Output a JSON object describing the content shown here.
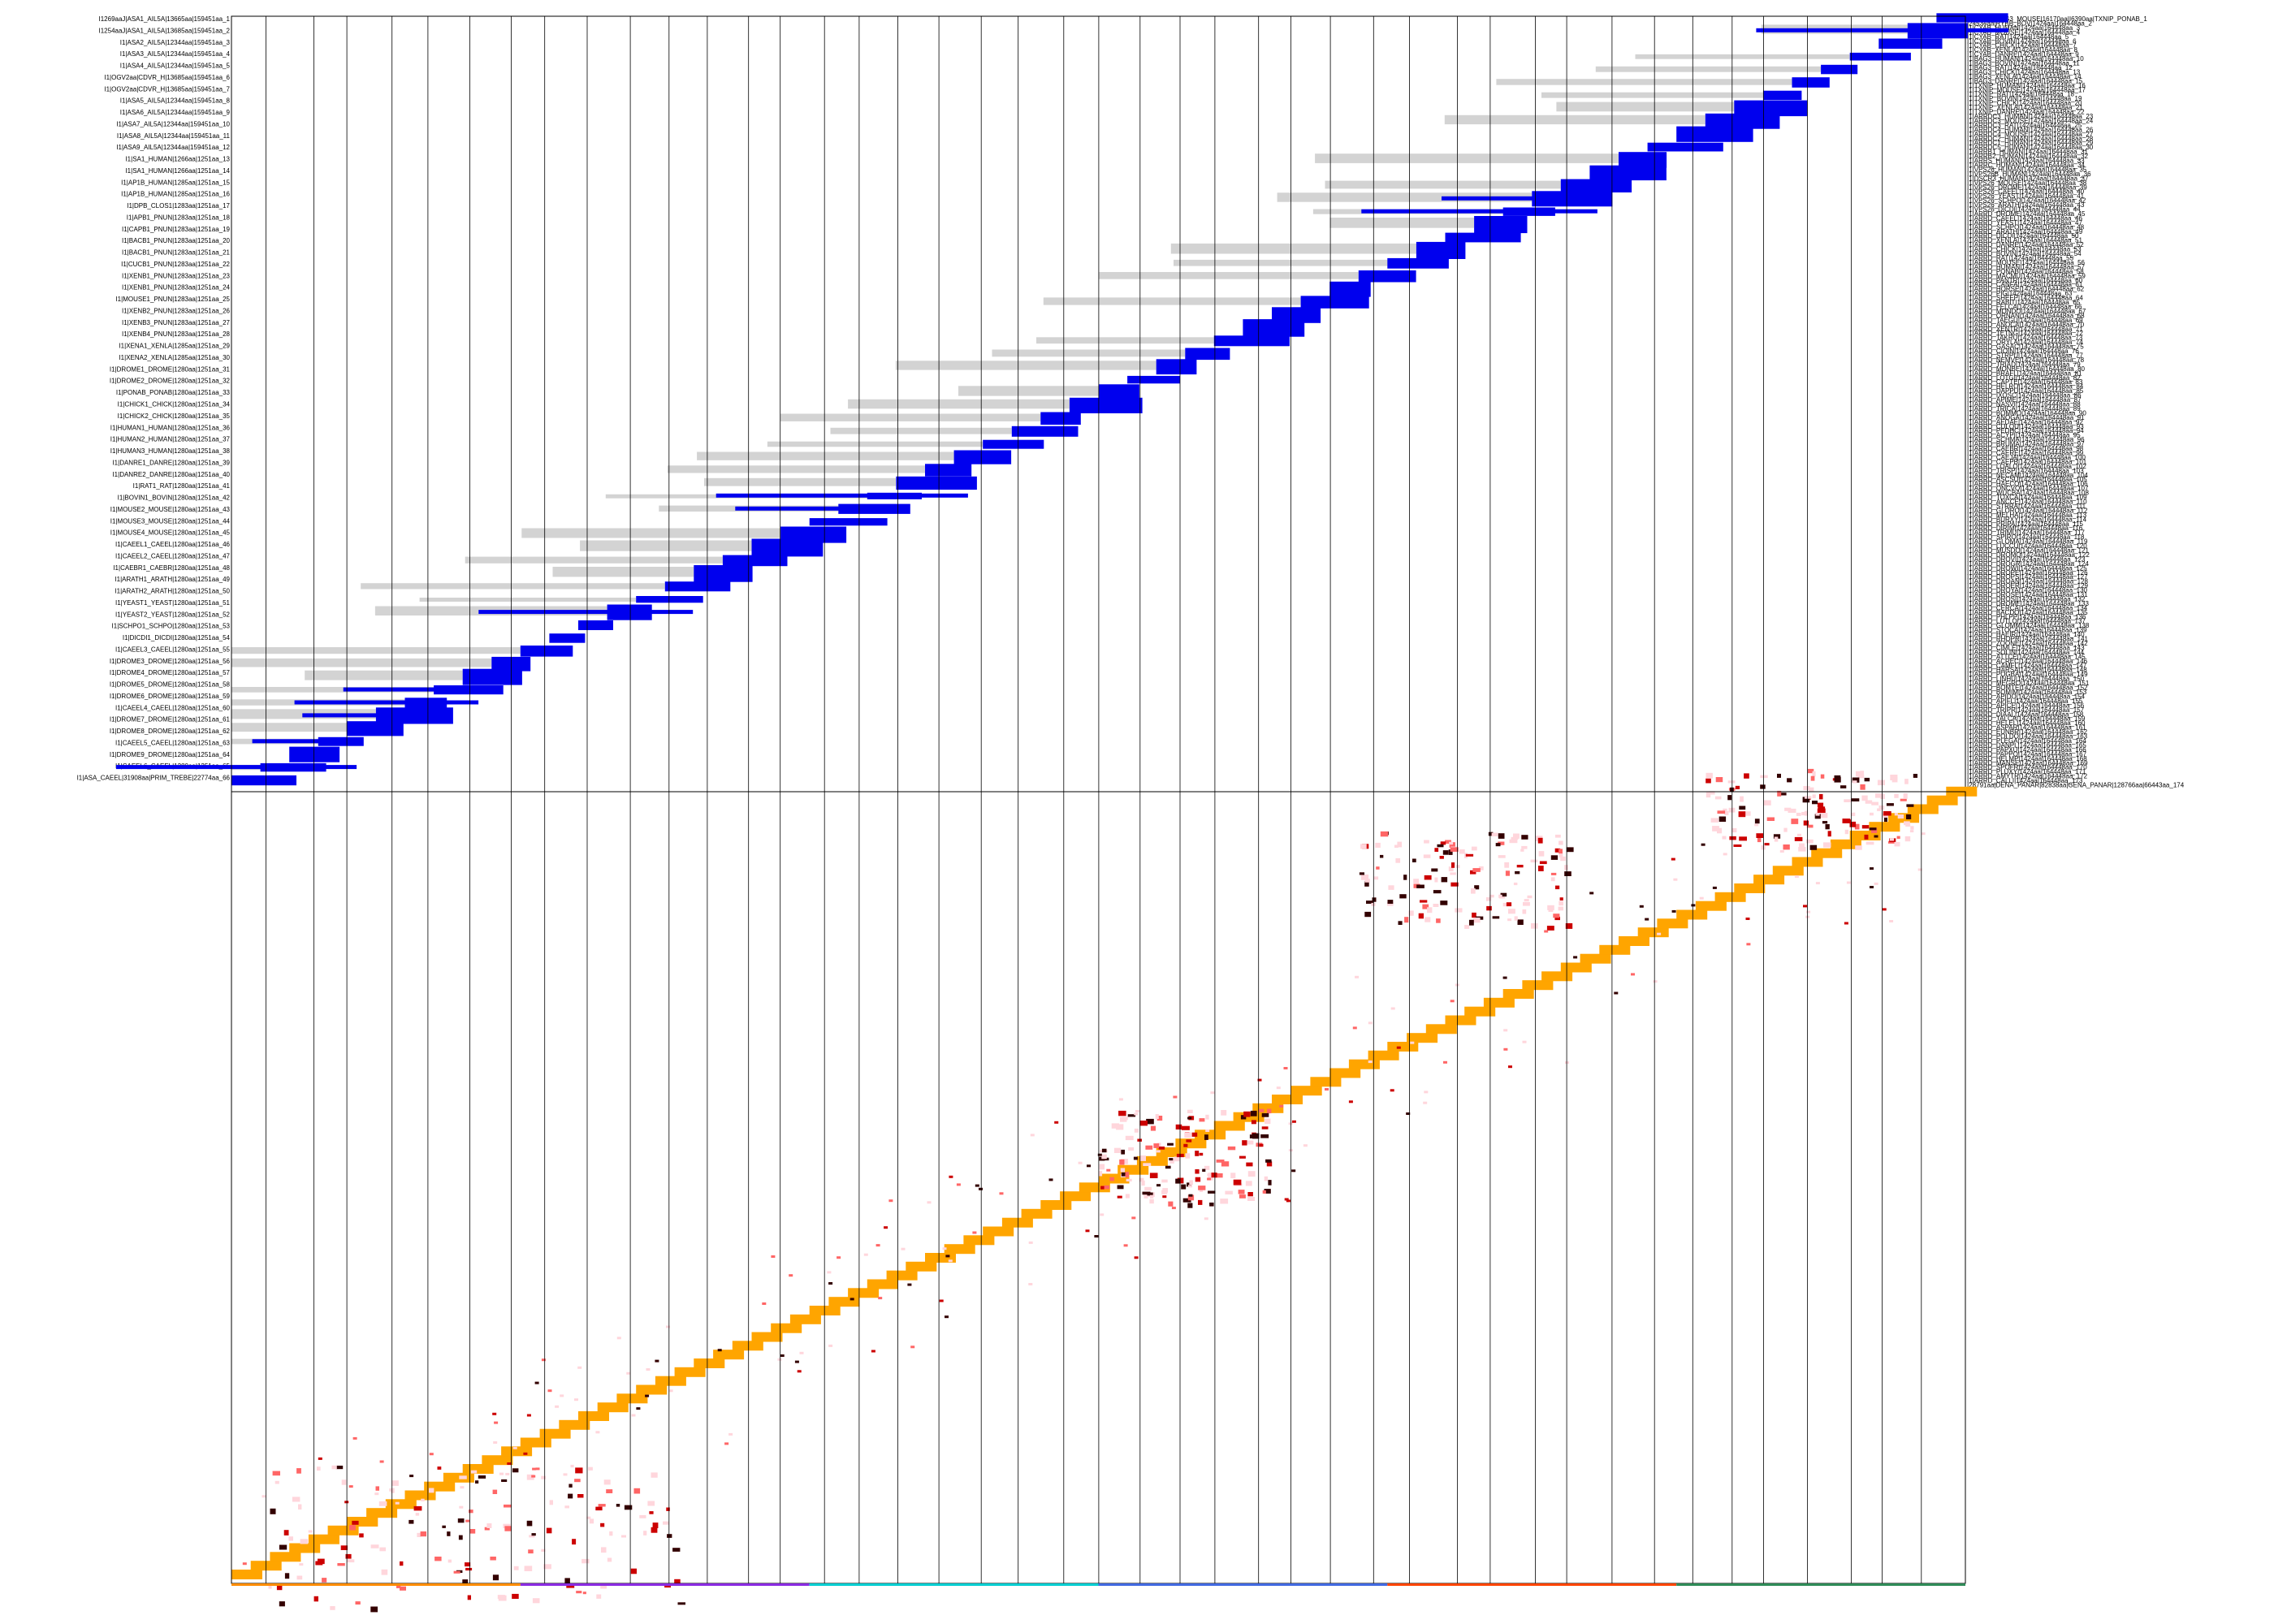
{
  "figure": {
    "description_free": true,
    "panel_top": "sequence-coverage",
    "panel_bottom": "contact-map"
  },
  "colors": {
    "background": "#ffffff",
    "coverage_cell": "#0000ee",
    "coverage_gap": "#d3d3d3",
    "grid_line": "#000000",
    "diagonal": "#ffa500",
    "contact_low": "#ffd6dc",
    "contact_mid": "#ff6666",
    "contact_high": "#cc0000",
    "contact_max": "#330000",
    "axis_strip": [
      "#ff8c00",
      "#8a2be2",
      "#00ced1",
      "#4169e1",
      "#ff4500",
      "#2e8b57"
    ]
  },
  "left_labels": [
    "I1269aaJ|ASA1_AIL5A|13665aa|159451aa_1",
    "I1254aaJ|ASA1_AIL5A|13685aa|159451aa_2",
    "I1|ASA2_AIL5A|12344aa|159451aa_3",
    "I1|ASA3_AIL5A|12344aa|159451aa_4",
    "I1|ASA4_AIL5A|12344aa|159451aa_5",
    "I1|OGV2aa|CDVR_H|13685aa|159451aa_6",
    "I1|OGV2aa|CDVR_H|13685aa|159451aa_7",
    "I1|ASA5_AIL5A|12344aa|159451aa_8",
    "I1|ASA6_AIL5A|12344aa|159451aa_9",
    "I1|ASA7_AIL5A|12344aa|159451aa_10",
    "I1|ASA8_AIL5A|12344aa|159451aa_11",
    "I1|ASA9_AIL5A|12344aa|159451aa_12",
    "I1|SA1_HUMAN|1266aa|1251aa_13",
    "I1|SA1_HUMAN|1266aa|1251aa_14",
    "I1|AP1B_HUMAN|1285aa|1251aa_15",
    "I1|AP1B_HUMAN|1285aa|1251aa_16",
    "I1|DPB_CLOS1|1283aa|1251aa_17",
    "I1|APB1_PNUN|1283aa|1251aa_18",
    "I1|CAPB1_PNUN|1283aa|1251aa_19",
    "I1|BACB1_PNUN|1283aa|1251aa_20",
    "I1|BACB1_PNUN|1283aa|1251aa_21",
    "I1|CUCB1_PNUN|1283aa|1251aa_22",
    "I1|XENB1_PNUN|1283aa|1251aa_23",
    "I1|XENB1_PNUN|1283aa|1251aa_24",
    "I1|MOUSE1_PNUN|1283aa|1251aa_25",
    "I1|XENB2_PNUN|1283aa|1251aa_26",
    "I1|XENB3_PNUN|1283aa|1251aa_27",
    "I1|XENB4_PNUN|1283aa|1251aa_28",
    "I1|XENA1_XENLA|1285aa|1251aa_29",
    "I1|XENA2_XENLA|1285aa|1251aa_30",
    "I1|DROME1_DROME|1280aa|1251aa_31",
    "I1|DROME2_DROME|1280aa|1251aa_32",
    "I1|PONAB_PONAB|1280aa|1251aa_33",
    "I1|CHICK1_CHICK|1280aa|1251aa_34",
    "I1|CHICK2_CHICK|1280aa|1251aa_35",
    "I1|HUMAN1_HUMAN|1280aa|1251aa_36",
    "I1|HUMAN2_HUMAN|1280aa|1251aa_37",
    "I1|HUMAN3_HUMAN|1280aa|1251aa_38",
    "I1|DANRE1_DANRE|1280aa|1251aa_39",
    "I1|DANRE2_DANRE|1280aa|1251aa_40",
    "I1|RAT1_RAT|1280aa|1251aa_41",
    "I1|BOVIN1_BOVIN|1280aa|1251aa_42",
    "I1|MOUSE2_MOUSE|1280aa|1251aa_43",
    "I1|MOUSE3_MOUSE|1280aa|1251aa_44",
    "I1|MOUSE4_MOUSE|1280aa|1251aa_45",
    "I1|CAEEL1_CAEEL|1280aa|1251aa_46",
    "I1|CAEEL2_CAEEL|1280aa|1251aa_47",
    "I1|CAEBR1_CAEBR|1280aa|1251aa_48",
    "I1|ARATH1_ARATH|1280aa|1251aa_49",
    "I1|ARATH2_ARATH|1280aa|1251aa_50",
    "I1|YEAST1_YEAST|1280aa|1251aa_51",
    "I1|YEAST2_YEAST|1280aa|1251aa_52",
    "I1|SCHPO1_SCHPO|1280aa|1251aa_53",
    "I1|DICDI1_DICDI|1280aa|1251aa_54",
    "I1|CAEEL3_CAEEL|1280aa|1251aa_55",
    "I1|DROME3_DROME|1280aa|1251aa_56",
    "I1|DROME4_DROME|1280aa|1251aa_57",
    "I1|DROME5_DROME|1280aa|1251aa_58",
    "I1|DROME6_DROME|1280aa|1251aa_59",
    "I1|CAEEL4_CAEEL|1280aa|1251aa_60",
    "I1|DROME7_DROME|1280aa|1251aa_61",
    "I1|DROME8_DROME|1280aa|1251aa_62",
    "I1|CAEEL5_CAEEL|1280aa|1251aa_63",
    "I1|DROME9_DROME|1280aa|1251aa_64",
    "I1|CAEEL6_CAEEL|1280aa|1251aa_65",
    "I1|ASA_CAEEL|31908aa|PRIM_TREBE|22774aa_66"
  ],
  "right_labels": [
    "I27009aa|BAG3_MOUSE|16170aa|I6390aa|TXNIP_PONAB_1",
    "I24534aa|RYBB_BOV|1424aa|164448aa_2",
    "I1|CYAB_HUMAN|1424aa|164448aa_3",
    "I1|CYAB_MOUSE|1424aa|164448aa_4",
    "I1|CYAB_RAT|1424aa|164448aa_5",
    "I1|CYAB_BOVIN|1424aa|164448aa_6",
    "I1|CYAB_CHICK|1424aa|164448aa_7",
    "I1|CYAB_XENLA|1424aa|164448aa_8",
    "I1|CYAB_DANRE|1424aa|164448aa_9",
    "I1|BAG3_HUMAN|1424aa|164448aa_10",
    "I1|BAG3_BOVIN|1424aa|164448aa_11",
    "I1|BAG3_RAT|1424aa|164448aa_12",
    "I1|BAG3_CHICK|1424aa|164448aa_13",
    "I1|BAG3_XENLA|1424aa|164448aa_14",
    "I1|BAG3_DANRE|1424aa|164448aa_15",
    "I1|TXNIP_HUMAN|1424aa|164448aa_16",
    "I1|TXNIP_MOUSE|1424aa|164448aa_17",
    "I1|TXNIP_RAT|1424aa|164448aa_18",
    "I1|TXNIP_BOVIN|1424aa|164448aa_19",
    "I1|TXNIP_CHICK|1424aa|164448aa_20",
    "I1|TXNIP_XENLA|1424aa|164448aa_21",
    "I1|TXNIP_DANRE|1424aa|164448aa_22",
    "I1|ARRDC3_HUMAN|1424aa|164448aa_23",
    "I1|ARRDC3_MOUSE|1424aa|164448aa_24",
    "I1|ARRDC3_RAT|1424aa|164448aa_25",
    "I1|ARRDC4_HUMAN|1424aa|164448aa_26",
    "I1|ARRDC4_MOUSE|1424aa|164448aa_27",
    "I1|ARRDC2_HUMAN|1424aa|164448aa_28",
    "I1|ARRDC1_HUMAN|1424aa|164448aa_29",
    "I1|ARRDC5_HUMAN|1424aa|164448aa_30",
    "I1|ARRB1_HUMAN|1424aa|164448aa_31",
    "I1|ARRB2_HUMAN|1424aa|164448aa_32",
    "I1|ARRS_HUMAN|1424aa|164448aa_33",
    "I1|ARRC_HUMAN|1424aa|164448aa_34",
    "I1|VPS26_HUMAN|1424aa|164448aa_35",
    "I1|VPS26B_HUMAN|1424aa|164448aa_36",
    "I1|DSCR3_HUMAN|1424aa|164448aa_37",
    "I1|VPS26_MOUSE|1424aa|164448aa_38",
    "I1|VPS26_DROME|1424aa|164448aa_39",
    "I1|VPS26_CAEEL|1424aa|164448aa_40",
    "I1|VPS26_YEAST|1424aa|164448aa_41",
    "I1|VPS26_SCHPO|1424aa|164448aa_42",
    "I1|VPS26_ARATH|1424aa|164448aa_43",
    "I1|VPS26_DICDI|1424aa|164448aa_44",
    "I1|ARRD_DROME|1424aa|164448aa_45",
    "I1|ARRD_CAEEL|1424aa|164448aa_46",
    "I1|ARRD_YEAST|1424aa|164448aa_47",
    "I1|ARRD_SCHPO|1424aa|164448aa_48",
    "I1|ARRD_ARATH|1424aa|164448aa_49",
    "I1|ARRD_DICDI|1424aa|164448aa_50",
    "I1|ARRD_XENLA|1424aa|164448aa_51",
    "I1|ARRD_DANRE|1424aa|164448aa_52",
    "I1|ARRD_CHICK|1424aa|164448aa_53",
    "I1|ARRD_BOVIN|1424aa|164448aa_54",
    "I1|ARRD_RAT|1424aa|164448aa_55",
    "I1|ARRD_MOUSE|1424aa|164448aa_56",
    "I1|ARRD_HUMAN|1424aa|164448aa_57",
    "I1|ARRD_PONAB|1424aa|164448aa_58",
    "I1|ARRD_MACMU|1424aa|164448aa_59",
    "I1|ARRD_PANTR|1424aa|164448aa_60",
    "I1|ARRD_CANFA|1424aa|164448aa_61",
    "I1|ARRD_HORSE|1424aa|164448aa_62",
    "I1|ARRD_PIG|1424aa|164448aa_63",
    "I1|ARRD_SHEEP|1424aa|164448aa_64",
    "I1|ARRD_RABIT|1424aa|164448aa_65",
    "I1|ARRD_FELCA|1424aa|164448aa_66",
    "I1|ARRD_MONDO|1424aa|164448aa_67",
    "I1|ARRD_ORNAN|1424aa|164448aa_68",
    "I1|ARRD_TAEGU|1424aa|164448aa_69",
    "I1|ARRD_ANOCA|1424aa|164448aa_70",
    "I1|ARRD_XENTR|1424aa|164448aa_71",
    "I1|ARRD_TETNG|1424aa|164448aa_72",
    "I1|ARRD_TAKRU|1424aa|164448aa_73",
    "I1|ARRD_ORYLA|1424aa|164448aa_74",
    "I1|ARRD_GASAC|1424aa|164448aa_75",
    "I1|ARRD_CIOIN|1424aa|164448aa_76",
    "I1|ARRD_STRPU|1424aa|164448aa_77",
    "I1|ARRD_NEMVE|1424aa|164448aa_78",
    "I1|ARRD_TRIAD|1424aa|164448aa_79",
    "I1|ARRD_MONBE|1424aa|164448aa_80",
    "I1|ARRD_BRAFL|1424aa|164448aa_81",
    "I1|ARRD_LOTGI|1424aa|164448aa_82",
    "I1|ARRD_CAPTE|1424aa|164448aa_83",
    "I1|ARRD_HELRO|1424aa|164448aa_84",
    "I1|ARRD_DAPPU|1424aa|164448aa_85",
    "I1|ARRD_IXOSC|1424aa|164448aa_86",
    "I1|ARRD_APIME|1424aa|164448aa_87",
    "I1|ARRD_NASVI|1424aa|164448aa_88",
    "I1|ARRD_TRICA|1424aa|164448aa_89",
    "I1|ARRD_BOMMO|1424aa|164448aa_90",
    "I1|ARRD_ANOGA|1424aa|164448aa_91",
    "I1|ARRD_AEDAE|1424aa|164448aa_92",
    "I1|ARRD_CULQU|1424aa|164448aa_93",
    "I1|ARRD_PEDHC|1424aa|164448aa_94",
    "I1|ARRD_ACYPI|1424aa|164448aa_95",
    "I1|ARRD_SCHMA|1424aa|164448aa_96",
    "I1|ARRD_BRUMA|1424aa|164448aa_97",
    "I1|ARRD_CAEBR|1424aa|164448aa_98",
    "I1|ARRD_CAERE|1424aa|164448aa_99",
    "I1|ARRD_CAEJA|1424aa|164448aa_100",
    "I1|ARRD_CAEPB|1424aa|164448aa_101",
    "I1|ARRD_LOALO|1424aa|164448aa_102",
    "I1|ARRD_TRISP|1424aa|164448aa_103",
    "I1|ARRD_NECAM|1424aa|164448aa_104",
    "I1|ARRD_ASCSU|1424aa|164448aa_105",
    "I1|ARRD_HAECO|1424aa|164448aa_106",
    "I1|ARRD_ONCVO|1424aa|164448aa_107",
    "I1|ARRD_WUCBA|1424aa|164448aa_108",
    "I1|ARRD_TOXCA|1424aa|164448aa_109",
    "I1|ARRD_ANCCE|1424aa|164448aa_110",
    "I1|ARRD_STRRA|1424aa|164448aa_111",
    "I1|ARRD_GLORO|1424aa|164448aa_112",
    "I1|ARRD_MELHA|1424aa|164448aa_113",
    "I1|ARRD_BURXY|1424aa|164448aa_114",
    "I1|ARRD_PRIPA|1424aa|164448aa_115",
    "I1|ARRD_DIRIM|1424aa|164448aa_116",
    "I1|ARRD_TRIMU|1424aa|164448aa_117",
    "I1|ARRD_SPIRO|1424aa|164448aa_118",
    "I1|ARRD_GLOMA|1424aa|164448aa_119",
    "I1|ARRD_LUCCU|1424aa|164448aa_120",
    "I1|ARRD_MUSDO|1424aa|164448aa_121",
    "I1|ARRD_DROMO|1424aa|164448aa_122",
    "I1|ARRD_DROVI|1424aa|164448aa_123",
    "I1|ARRD_DROGR|1424aa|164448aa_124",
    "I1|ARRD_DROWI|1424aa|164448aa_125",
    "I1|ARRD_DROPE|1424aa|164448aa_126",
    "I1|ARRD_DROPS|1424aa|164448aa_127",
    "I1|ARRD_DROAN|1424aa|164448aa_128",
    "I1|ARRD_DROER|1424aa|164448aa_129",
    "I1|ARRD_DROYA|1424aa|164448aa_130",
    "I1|ARRD_DROSE|1424aa|164448aa_131",
    "I1|ARRD_DROSI|1424aa|164448aa_132",
    "I1|ARRD_DROME|1424aa|164448aa_133",
    "I1|ARRD_CERCA|1424aa|164448aa_134",
    "I1|ARRD_BACDO|1424aa|164448aa_135",
    "I1|ARRD_PHLPP|1424aa|164448aa_136",
    "I1|ARRD_LUTLO|1424aa|164448aa_137",
    "I1|ARRD_GLOMM|1424aa|164448aa_138",
    "I1|ARRD_STOCA|1424aa|164448aa_139",
    "I1|ARRD_HAEIR|1424aa|164448aa_140",
    "I1|ARRD_RHOPR|1424aa|164448aa_141",
    "I1|ARRD_ZOONE|1424aa|164448aa_142",
    "I1|ARRD_CIMLE|1424aa|164448aa_143",
    "I1|ARRD_SOLIN|1424aa|164448aa_144",
    "I1|ARRD_ATTCE|1424aa|164448aa_145",
    "I1|ARRD_ACREC|1424aa|164448aa_146",
    "I1|ARRD_CAMFL|1424aa|164448aa_147",
    "I1|ARRD_HARSA|1424aa|164448aa_148",
    "I1|ARRD_POGBA|1424aa|164448aa_149",
    "I1|ARRD_LINHU|1424aa|164448aa_150",
    "I1|ARRD_MEGRO|1424aa|164448aa_151",
    "I1|ARRD_BOMTE|1424aa|164448aa_152",
    "I1|ARRD_BOMIM|1424aa|164448aa_153",
    "I1|ARRD_APIDO|1424aa|164448aa_154",
    "I1|ARRD_APIFL|1424aa|164448aa_155",
    "I1|ARRD_APICE|1424aa|164448aa_156",
    "I1|ARRD_TRIPR|1424aa|164448aa_157",
    "I1|ARRD_DIAAL|1424aa|164448aa_158",
    "I1|ARRD_TALCA|1424aa|164448aa_159",
    "I1|ARRD_HELEL|1424aa|164448aa_160",
    "I1|ARRD_ASPAR|1424aa|164448aa_161",
    "I1|ARRD_EUNBR|1424aa|164448aa_162",
    "I1|ARRD_POLDO|1424aa|164448aa_163",
    "I1|ARRD_PLEGA|1424aa|164448aa_164",
    "I1|ARRD_DANPL|1424aa|164448aa_165",
    "I1|ARRD_PAPXU|1424aa|164448aa_166",
    "I1|ARRD_PAPPO|1424aa|164448aa_167",
    "I1|ARRD_HELMP|1424aa|164448aa_168",
    "I1|ARRD_MANSE|1424aa|164448aa_169",
    "I1|ARRD_SPOFR|1424aa|164448aa_170",
    "I1|ARRD_PLUXY|1424aa|164448aa_171",
    "I1|ARRD_AMYTR|1424aa|164448aa_172",
    "I1|ARRD_CALLI|1424aa|164448aa_173",
    "I28791aa|DENA_PANAR|82838aa|GENA_PANAR|128766aa|66443aa_174"
  ]
}
